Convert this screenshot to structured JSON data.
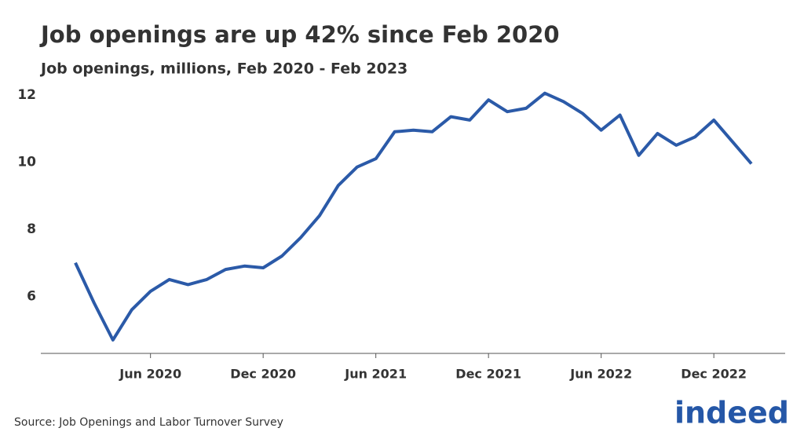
{
  "chart_data": {
    "type": "line",
    "title": "Job openings are up 42% since Feb 2020",
    "subtitle": "Job openings, millions, Feb 2020 - Feb 2023",
    "source": "Source: Job Openings and Labor Turnover Survey",
    "logo": "indeed",
    "color": "#2b5aa8",
    "x": [
      "2020-02",
      "2020-03",
      "2020-04",
      "2020-05",
      "2020-06",
      "2020-07",
      "2020-08",
      "2020-09",
      "2020-10",
      "2020-11",
      "2020-12",
      "2021-01",
      "2021-02",
      "2021-03",
      "2021-04",
      "2021-05",
      "2021-06",
      "2021-07",
      "2021-08",
      "2021-09",
      "2021-10",
      "2021-11",
      "2021-12",
      "2022-01",
      "2022-02",
      "2022-03",
      "2022-04",
      "2022-05",
      "2022-06",
      "2022-07",
      "2022-08",
      "2022-09",
      "2022-10",
      "2022-11",
      "2022-12",
      "2023-01",
      "2023-02"
    ],
    "values": [
      7.0,
      5.8,
      4.7,
      5.6,
      6.15,
      6.5,
      6.35,
      6.5,
      6.8,
      6.9,
      6.85,
      7.2,
      7.75,
      8.4,
      9.3,
      9.85,
      10.1,
      10.9,
      10.95,
      10.9,
      11.35,
      11.25,
      11.85,
      11.5,
      11.6,
      12.05,
      11.8,
      11.45,
      10.95,
      11.4,
      10.2,
      10.85,
      10.5,
      10.75,
      11.25,
      10.6,
      9.95
    ],
    "xticks": [
      {
        "value": "2020-06",
        "label": "Jun 2020"
      },
      {
        "value": "2020-12",
        "label": "Dec 2020"
      },
      {
        "value": "2021-06",
        "label": "Jun 2021"
      },
      {
        "value": "2021-12",
        "label": "Dec 2021"
      },
      {
        "value": "2022-06",
        "label": "Jun 2022"
      },
      {
        "value": "2022-12",
        "label": "Dec 2022"
      }
    ],
    "ylim": [
      4.3,
      12.3
    ],
    "yticks": [
      6,
      8,
      10,
      12
    ],
    "grid": false
  }
}
